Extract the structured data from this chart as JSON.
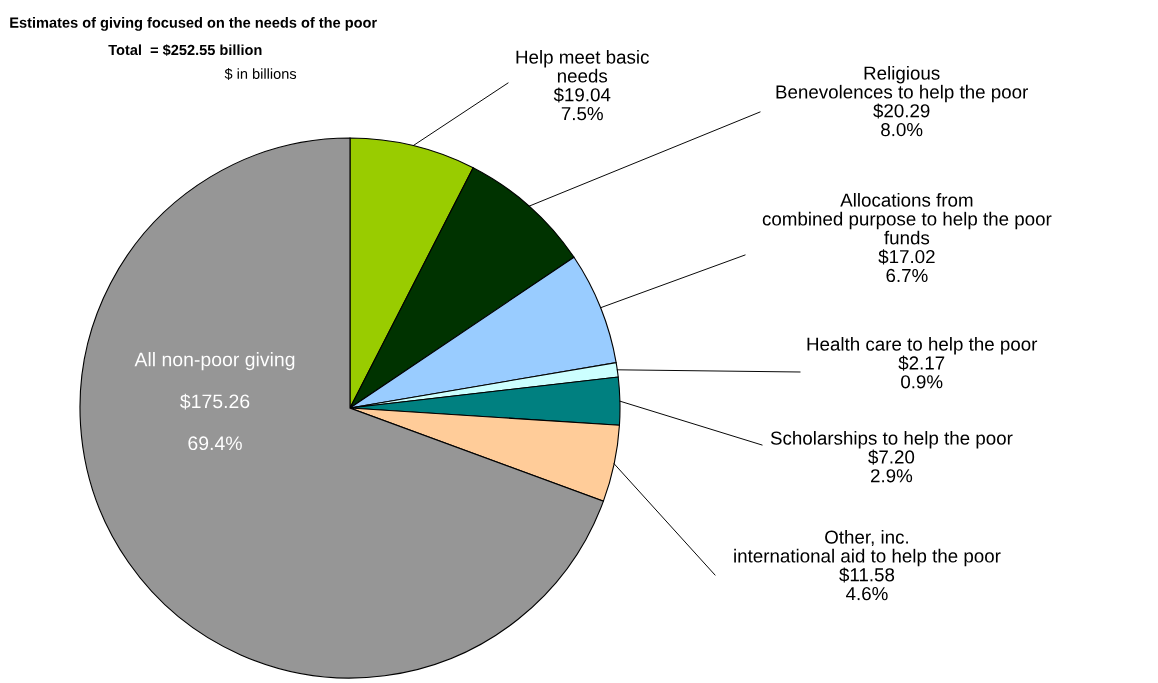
{
  "chart_data": {
    "type": "pie",
    "title": "Estimates of giving focused on the needs of the poor",
    "subtitle": "Total  = $252.55 billion",
    "annotations": [
      "$ in billions"
    ],
    "categories": [
      "Help meet basic\nneeds",
      "Religious\nBenevolences to help the poor",
      "Allocations from\ncombined purpose to help the poor\nfunds",
      "Health care to help the poor",
      "Scholarships to help the poor",
      "Other, inc.\ninternational aid to help the poor",
      "All non-poor giving"
    ],
    "values": [
      19.04,
      20.29,
      17.02,
      2.17,
      7.2,
      11.58,
      175.26
    ],
    "value_labels": [
      "$19.04\n7.5%",
      "$20.29\n8.0%",
      "$17.02\n6.7%",
      "$2.17\n0.9%",
      "$7.20\n2.9%",
      "$11.58\n4.6%",
      "$175.26\n\n69.4%"
    ],
    "colors": [
      "#99cc00",
      "#003300",
      "#99ccff",
      "#ccffff",
      "#008080",
      "#ffcc99",
      "#969696"
    ],
    "legend": false
  }
}
